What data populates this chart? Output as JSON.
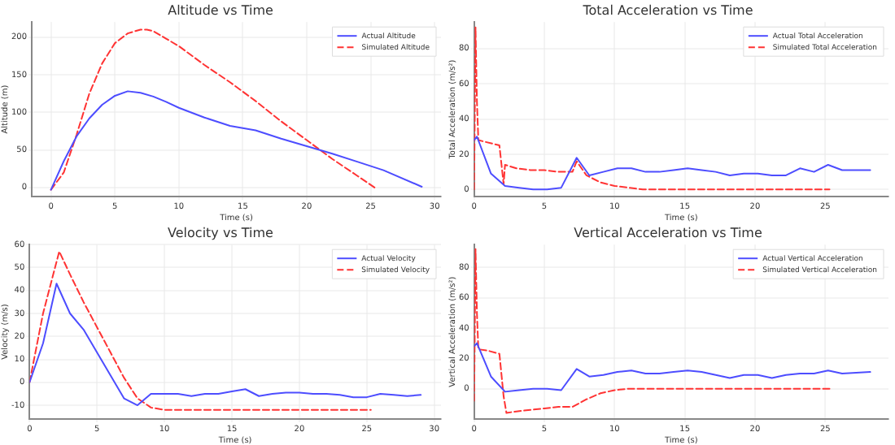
{
  "chart_data": [
    {
      "type": "line",
      "title": "Altitude vs Time",
      "xlabel": "Time (s)",
      "ylabel": "Altitude (m)",
      "xlim": [
        -1.5,
        30.5
      ],
      "ylim": [
        -12,
        220
      ],
      "xticks": [
        0,
        5,
        10,
        15,
        20,
        25,
        30
      ],
      "yticks": [
        0,
        50,
        100,
        150,
        200
      ],
      "grid": true,
      "legend": "top right",
      "marker": "none",
      "series": [
        {
          "name": "Actual Altitude",
          "color": "#4d4dff",
          "line_style": "solid",
          "x": [
            0,
            1,
            2,
            3,
            4,
            5,
            6,
            7,
            8,
            9,
            10,
            12,
            14,
            16,
            18,
            20,
            22,
            24,
            26,
            29
          ],
          "values": [
            -3,
            35,
            68,
            92,
            110,
            122,
            128,
            126,
            121,
            114,
            106,
            93,
            82,
            76,
            65,
            55,
            45,
            34,
            23,
            1
          ]
        },
        {
          "name": "Simulated Altitude",
          "color": "#ff3333",
          "line_style": "dashed",
          "x": [
            0,
            1,
            2,
            3,
            4,
            5,
            6,
            7,
            7.5,
            8,
            9,
            10,
            12,
            14,
            16,
            18,
            20,
            22,
            24,
            25.3
          ],
          "values": [
            -3,
            20,
            70,
            125,
            165,
            192,
            205,
            210,
            210,
            208,
            198,
            188,
            163,
            140,
            115,
            88,
            63,
            38,
            15,
            0
          ]
        }
      ]
    },
    {
      "type": "line",
      "title": "Total Acceleration vs Time",
      "xlabel": "Time (s)",
      "ylabel": "Total Acceleration (m/s²)",
      "xlim": [
        0,
        29.5
      ],
      "ylim": [
        -4,
        95
      ],
      "xticks": [
        0,
        5,
        10,
        15,
        20,
        25
      ],
      "yticks": [
        0,
        20,
        40,
        60,
        80
      ],
      "grid": true,
      "legend": "top right",
      "marker": "none",
      "series": [
        {
          "name": "Actual Total Acceleration",
          "color": "#4d4dff",
          "line_style": "solid",
          "x": [
            0,
            0.2,
            1.2,
            2.2,
            3.2,
            4.2,
            5.2,
            6.2,
            7.3,
            8.2,
            9.2,
            10.2,
            11.2,
            12.2,
            13.2,
            14.2,
            15.2,
            16.2,
            17.2,
            18.2,
            19.2,
            20.2,
            21.2,
            22.2,
            23.2,
            24.2,
            25.2,
            26.2,
            28.2
          ],
          "values": [
            28,
            30,
            9,
            2,
            1,
            0,
            0,
            1,
            18,
            8,
            10,
            12,
            12,
            10,
            10,
            11,
            12,
            11,
            10,
            8,
            9,
            9,
            8,
            8,
            12,
            10,
            14,
            11,
            11
          ]
        },
        {
          "name": "Simulated Total Acceleration",
          "color": "#ff3333",
          "line_style": "dashed",
          "x": [
            0,
            0.1,
            0.2,
            0.3,
            1.8,
            2.1,
            2.2,
            3,
            4,
            5,
            6,
            7,
            7.3,
            8,
            9,
            10,
            11,
            12,
            15,
            20,
            25.3
          ],
          "values": [
            0,
            92,
            50,
            28,
            25,
            3,
            14,
            12,
            11,
            11,
            10,
            10,
            16,
            8,
            4,
            2,
            1,
            0,
            0,
            0,
            0
          ]
        }
      ]
    },
    {
      "type": "line",
      "title": "Velocity vs Time",
      "xlabel": "Time (s)",
      "ylabel": "Velocity (m/s)",
      "xlim": [
        0,
        30.5
      ],
      "ylim": [
        -16,
        60
      ],
      "xticks": [
        0,
        5,
        10,
        15,
        20,
        25,
        30
      ],
      "yticks": [
        -10,
        0,
        10,
        20,
        30,
        40,
        50,
        60
      ],
      "grid": true,
      "legend": "top right",
      "marker": "none",
      "series": [
        {
          "name": "Actual Velocity",
          "color": "#4d4dff",
          "line_style": "solid",
          "x": [
            0,
            1,
            2,
            3,
            4,
            5,
            6,
            7,
            8,
            9,
            10,
            11,
            12,
            13,
            14,
            15,
            16,
            17,
            18,
            19,
            20,
            21,
            22,
            23,
            24,
            25,
            26,
            27,
            28,
            29
          ],
          "values": [
            0,
            17,
            43,
            30,
            23,
            13,
            3,
            -7,
            -10,
            -5,
            -5,
            -5,
            -6,
            -5,
            -5,
            -4,
            -3,
            -6,
            -5,
            -4.5,
            -4.5,
            -5,
            -5,
            -5.5,
            -6.5,
            -6.5,
            -5,
            -5.5,
            -6,
            -5.5
          ]
        },
        {
          "name": "Simulated Velocity",
          "color": "#ff3333",
          "line_style": "dashed",
          "x": [
            0,
            1,
            2.2,
            3,
            4,
            5,
            6,
            7,
            8,
            9,
            10,
            11,
            15,
            20,
            25.3
          ],
          "values": [
            0,
            30,
            57,
            47,
            35,
            24,
            13,
            2,
            -7,
            -11,
            -12,
            -12,
            -12,
            -12,
            -12
          ]
        }
      ]
    },
    {
      "type": "line",
      "title": "Vertical Acceleration vs Time",
      "xlabel": "Time (s)",
      "ylabel": "Vertical Acceleration (m/s²)",
      "xlim": [
        0,
        29.5
      ],
      "ylim": [
        -20,
        95
      ],
      "xticks": [
        0,
        5,
        10,
        15,
        20,
        25
      ],
      "yticks": [
        0,
        20,
        40,
        60,
        80
      ],
      "grid": true,
      "legend": "top right",
      "marker": "none",
      "series": [
        {
          "name": "Actual Vertical Acceleration",
          "color": "#4d4dff",
          "line_style": "solid",
          "x": [
            0,
            0.2,
            1.2,
            2.2,
            3.2,
            4.2,
            5.2,
            6.2,
            7.3,
            8.2,
            9.2,
            10.2,
            11.2,
            12.2,
            13.2,
            14.2,
            15.2,
            16.2,
            17.2,
            18.2,
            19.2,
            20.2,
            21.2,
            22.2,
            23.2,
            24.2,
            25.2,
            26.2,
            28.2
          ],
          "values": [
            28,
            30,
            8,
            -2,
            -1,
            0,
            0,
            -1,
            13,
            8,
            9,
            11,
            12,
            10,
            10,
            11,
            12,
            11,
            9,
            7,
            9,
            9,
            7,
            9,
            10,
            10,
            12,
            10,
            11
          ]
        },
        {
          "name": "Simulated Vertical Acceleration",
          "color": "#ff3333",
          "line_style": "dashed",
          "x": [
            0,
            0.1,
            0.2,
            0.3,
            1,
            1.8,
            2.1,
            2.3,
            3,
            4,
            5,
            6,
            7,
            8,
            9,
            10,
            11,
            12,
            15,
            20,
            25.3
          ],
          "values": [
            -8,
            92,
            50,
            26,
            25,
            23,
            -5,
            -16,
            -15,
            -14,
            -13,
            -12,
            -12,
            -7,
            -3,
            -1,
            0,
            0,
            0,
            0,
            0
          ]
        }
      ]
    }
  ]
}
